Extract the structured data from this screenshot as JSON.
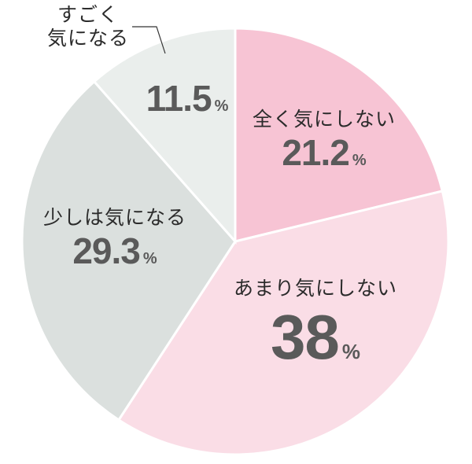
{
  "chart_data": {
    "type": "pie",
    "title": "",
    "start_angle_deg": 0,
    "direction": "clockwise",
    "slices": [
      {
        "label": "全く気にしない",
        "value": 21.2,
        "display": "21.2",
        "color": "#f7c4d4"
      },
      {
        "label": "あまり気にしない",
        "value": 38,
        "display": "38",
        "color": "#fadde6"
      },
      {
        "label": "少しは気になる",
        "value": 29.3,
        "display": "29.3",
        "color": "#dbe0de"
      },
      {
        "label": "すごく気になる",
        "value": 11.5,
        "display": "11.5",
        "color": "#eaeeec"
      }
    ],
    "unit": "%"
  },
  "labels": {
    "s0": {
      "name": "全く気にしない",
      "value": "21.2",
      "unit": "%"
    },
    "s1": {
      "name": "あまり気にしない",
      "value": "38",
      "unit": "%"
    },
    "s2": {
      "name": "少しは気になる",
      "value": "29.3",
      "unit": "%"
    },
    "s3": {
      "name_line1": "すごく",
      "name_line2": "気になる",
      "value": "11.5",
      "unit": "%"
    }
  }
}
